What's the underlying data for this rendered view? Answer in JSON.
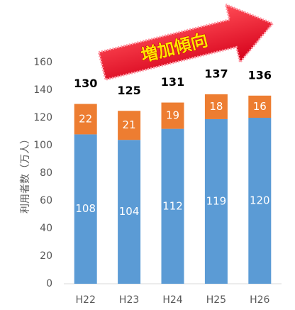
{
  "chart_data": {
    "type": "stacked_bar",
    "annotation": "増加傾向",
    "y_label": "利用者数（万人）",
    "categories": [
      "H22",
      "H23",
      "H24",
      "H25",
      "H26"
    ],
    "series": [
      {
        "color": "#5b9bd5",
        "values": [
          108,
          104,
          112,
          119,
          120
        ]
      },
      {
        "color": "#ed7d31",
        "values": [
          22,
          21,
          19,
          18,
          16
        ]
      }
    ],
    "totals": [
      130,
      125,
      131,
      137,
      136
    ],
    "ylim": [
      0,
      160
    ],
    "yticks": [
      0,
      20,
      40,
      60,
      80,
      100,
      120,
      140,
      160
    ],
    "grid": false
  }
}
